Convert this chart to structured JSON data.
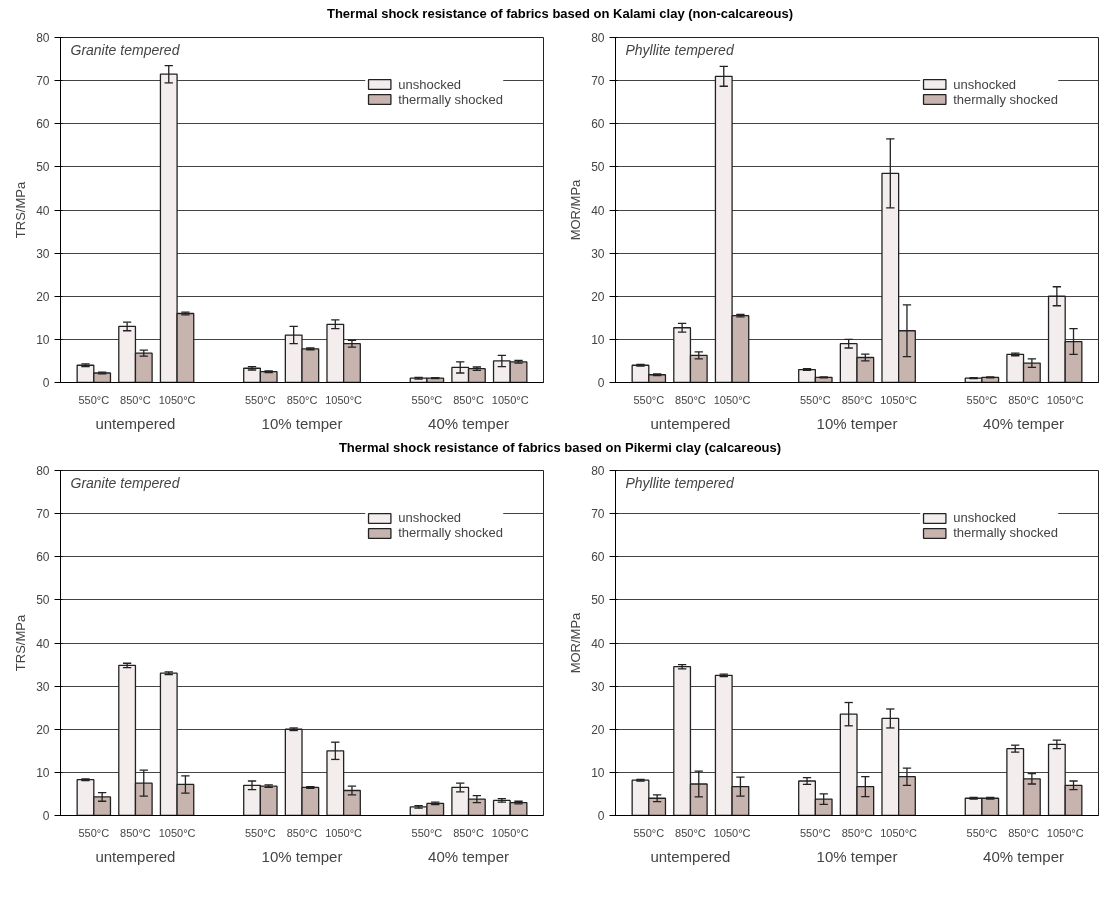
{
  "chart_data": [
    {
      "type": "bar",
      "title": "Thermal shock resistance of fabrics based on Kalami clay (non-calcareous)",
      "subtitle": "Granite tempered",
      "ylabel": "TRS/MPa",
      "categories": [
        "550°C",
        "850°C",
        "1050°C",
        "550°C",
        "850°C",
        "1050°C",
        "550°C",
        "850°C",
        "1050°C"
      ],
      "annotations": [
        "untempered",
        "10% temper",
        "40% temper"
      ],
      "ylim": [
        0,
        80
      ],
      "yticks": [
        0,
        10,
        20,
        30,
        40,
        50,
        60,
        70,
        80
      ],
      "grid": "y",
      "legend": "top right",
      "series": [
        {
          "name": "unshocked",
          "color": "#f3eded",
          "values": [
            4,
            13,
            71.5,
            3.3,
            11,
            13.5,
            1,
            3.5,
            5
          ],
          "errors": [
            0.3,
            1,
            2,
            0.4,
            2,
            1,
            0.2,
            1.3,
            1.3
          ]
        },
        {
          "name": "thermally shocked",
          "color": "#c8b4ae",
          "values": [
            2.2,
            6.8,
            16,
            2.5,
            7.8,
            9,
            1,
            3.2,
            4.8
          ],
          "errors": [
            0.2,
            0.7,
            0.3,
            0.2,
            0.2,
            0.8,
            0.1,
            0.4,
            0.3
          ]
        }
      ]
    },
    {
      "type": "bar",
      "subtitle": "Phyllite tempered",
      "ylabel": "MOR/MPa",
      "categories": [
        "550°C",
        "850°C",
        "1050°C",
        "550°C",
        "850°C",
        "1050°C",
        "550°C",
        "850°C",
        "1050°C"
      ],
      "annotations": [
        "untempered",
        "10% temper",
        "40% temper"
      ],
      "ylim": [
        0,
        80
      ],
      "yticks": [
        0,
        10,
        20,
        30,
        40,
        50,
        60,
        70,
        80
      ],
      "grid": "y",
      "legend": "top right",
      "series": [
        {
          "name": "unshocked",
          "color": "#f3eded",
          "values": [
            4,
            12.7,
            71,
            3,
            9,
            48.5,
            1,
            6.5,
            20
          ],
          "errors": [
            0.2,
            1,
            2.3,
            0.2,
            1,
            8,
            0.1,
            0.3,
            2.2
          ]
        },
        {
          "name": "thermally shocked",
          "color": "#c8b4ae",
          "values": [
            1.8,
            6.3,
            15.5,
            1.2,
            5.8,
            12,
            1.2,
            4.5,
            9.5
          ],
          "errors": [
            0.2,
            0.8,
            0.3,
            0.1,
            0.8,
            6,
            0.1,
            1,
            3
          ]
        }
      ]
    },
    {
      "type": "bar",
      "title": "Thermal shock resistance of fabrics based on Pikermi clay (calcareous)",
      "subtitle": "Granite tempered",
      "ylabel": "TRS/MPa",
      "categories": [
        "550°C",
        "850°C",
        "1050°C",
        "550°C",
        "850°C",
        "1050°C",
        "550°C",
        "850°C",
        "1050°C"
      ],
      "annotations": [
        "untempered",
        "10% temper",
        "40% temper"
      ],
      "ylim": [
        0,
        80
      ],
      "yticks": [
        0,
        10,
        20,
        30,
        40,
        50,
        60,
        70,
        80
      ],
      "grid": "y",
      "legend": "top right",
      "series": [
        {
          "name": "unshocked",
          "color": "#f3eded",
          "values": [
            8.3,
            34.8,
            33,
            7,
            20,
            15,
            2,
            6.5,
            3.5
          ],
          "errors": [
            0.2,
            0.5,
            0.3,
            1,
            0.3,
            2,
            0.3,
            1,
            0.4
          ]
        },
        {
          "name": "thermally shocked",
          "color": "#c8b4ae",
          "values": [
            4.3,
            7.5,
            7.2,
            6.8,
            6.5,
            5.8,
            2.8,
            3.8,
            3
          ],
          "errors": [
            1,
            3,
            2,
            0.3,
            0.2,
            1,
            0.3,
            0.8,
            0.3
          ]
        }
      ]
    },
    {
      "type": "bar",
      "subtitle": "Phyllite tempered",
      "ylabel": "MOR/MPa",
      "categories": [
        "550°C",
        "850°C",
        "1050°C",
        "550°C",
        "850°C",
        "1050°C",
        "550°C",
        "850°C",
        "1050°C"
      ],
      "annotations": [
        "untempered",
        "10% temper",
        "40% temper"
      ],
      "ylim": [
        0,
        80
      ],
      "yticks": [
        0,
        10,
        20,
        30,
        40,
        50,
        60,
        70,
        80
      ],
      "grid": "y",
      "legend": "top right",
      "series": [
        {
          "name": "unshocked",
          "color": "#f3eded",
          "values": [
            8.2,
            34.5,
            32.5,
            8,
            23.5,
            22.5,
            4,
            15.5,
            16.5
          ],
          "errors": [
            0.2,
            0.5,
            0.3,
            0.8,
            2.7,
            2.2,
            0.2,
            0.8,
            1
          ]
        },
        {
          "name": "thermally shocked",
          "color": "#c8b4ae",
          "values": [
            4,
            7.3,
            6.7,
            3.8,
            6.7,
            9,
            4,
            8.5,
            7
          ],
          "errors": [
            0.8,
            3,
            2.2,
            1.2,
            2.3,
            2,
            0.2,
            1.2,
            1
          ]
        }
      ]
    }
  ]
}
